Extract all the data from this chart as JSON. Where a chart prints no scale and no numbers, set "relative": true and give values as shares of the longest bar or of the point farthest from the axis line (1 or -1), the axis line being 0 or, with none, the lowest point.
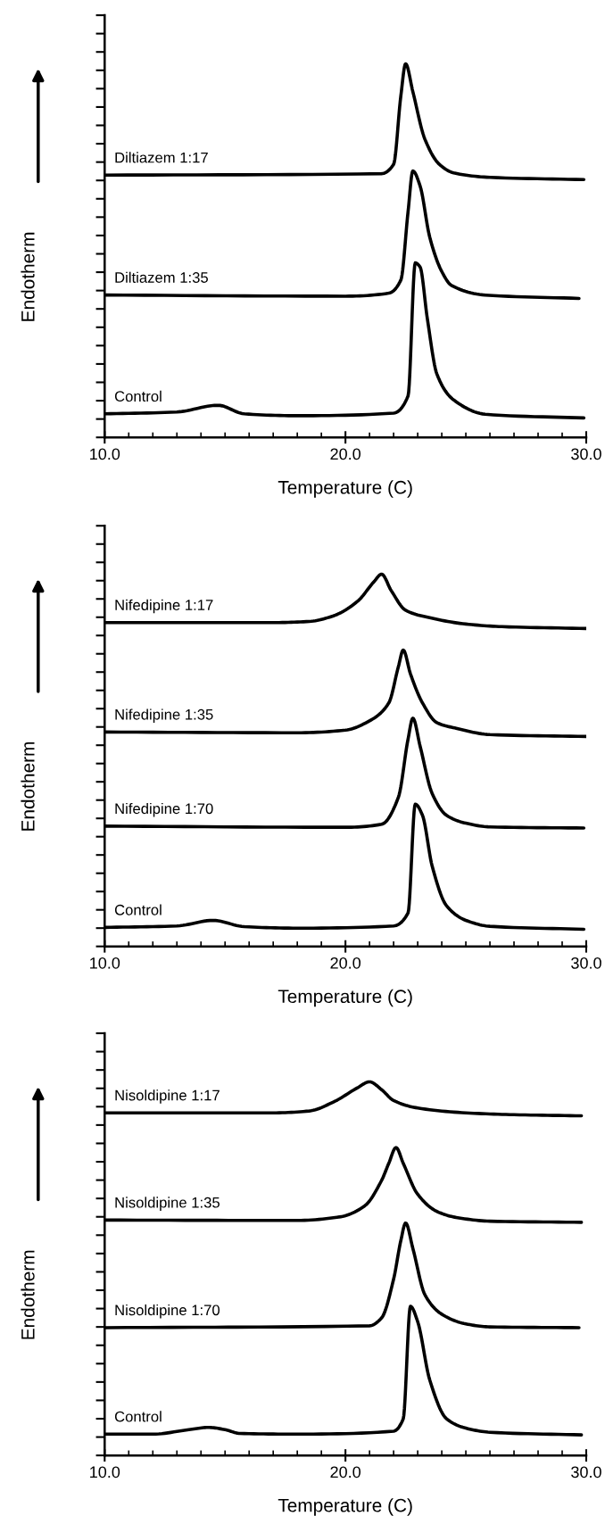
{
  "chart_data": [
    {
      "type": "line",
      "xlabel": "Temperature (C)",
      "ylabel": "Endotherm",
      "relative": true,
      "xlim": [
        10,
        30
      ],
      "xticks": [
        {
          "value": 10,
          "label": "10.0"
        },
        {
          "value": 20,
          "label": "20.0"
        },
        {
          "value": 30,
          "label": "30.0"
        }
      ],
      "tick_labels": "x",
      "grid": false,
      "legend": "left",
      "series": [
        {
          "name": "Diltiazem 1:17",
          "color": "#000000",
          "x": [
            10,
            21.5,
            22,
            22.3,
            22.5,
            22.8,
            23.3,
            23.9,
            24.5,
            26,
            29.9
          ],
          "values": [
            0.702,
            0.706,
            0.731,
            0.914,
            1.0,
            0.925,
            0.798,
            0.731,
            0.708,
            0.696,
            0.69
          ]
        },
        {
          "name": "Diltiazem 1:35",
          "color": "#000000",
          "x": [
            10,
            20,
            21.8,
            22.3,
            22.6,
            22.8,
            23.1,
            23.5,
            24,
            24.4,
            25.8,
            29.7
          ],
          "values": [
            0.381,
            0.378,
            0.386,
            0.421,
            0.604,
            0.713,
            0.673,
            0.536,
            0.444,
            0.407,
            0.381,
            0.372
          ]
        },
        {
          "name": "Control",
          "color": "#000000",
          "x": [
            10,
            13,
            14.7,
            15.8,
            18,
            22,
            22.6,
            22.9,
            23.1,
            23.4,
            23.8,
            24.5,
            25.8,
            29.9
          ],
          "values": [
            0.063,
            0.068,
            0.086,
            0.063,
            0.058,
            0.065,
            0.111,
            0.467,
            0.456,
            0.318,
            0.169,
            0.1,
            0.062,
            0.052
          ]
        }
      ]
    },
    {
      "type": "line",
      "xlabel": "Temperature (C)",
      "ylabel": "Endotherm",
      "relative": true,
      "xlim": [
        10,
        30
      ],
      "xticks": [
        {
          "value": 10,
          "label": "10.0"
        },
        {
          "value": 20,
          "label": "20.0"
        },
        {
          "value": 30,
          "label": "30.0"
        }
      ],
      "tick_labels": "x",
      "grid": false,
      "legend": "left",
      "series": [
        {
          "name": "Nifedipine 1:17",
          "color": "#000000",
          "x": [
            10,
            17,
            18.5,
            19.5,
            20.5,
            21.2,
            21.5,
            21.9,
            22.5,
            23.5,
            25,
            26.5,
            30
          ],
          "values": [
            0.87,
            0.87,
            0.873,
            0.888,
            0.927,
            0.981,
            1.0,
            0.956,
            0.903,
            0.883,
            0.866,
            0.859,
            0.854
          ]
        },
        {
          "name": "Nifedipine 1:35",
          "color": "#000000",
          "x": [
            10,
            18,
            20,
            21,
            21.8,
            22.2,
            22.4,
            22.7,
            23.2,
            23.8,
            24.6,
            26,
            30
          ],
          "values": [
            0.576,
            0.574,
            0.581,
            0.606,
            0.654,
            0.752,
            0.796,
            0.732,
            0.654,
            0.601,
            0.586,
            0.569,
            0.564
          ]
        },
        {
          "name": "Nifedipine 1:70",
          "color": "#000000",
          "x": [
            10,
            20,
            21.5,
            22.2,
            22.6,
            22.8,
            23.1,
            23.6,
            24.2,
            25,
            26,
            29.9
          ],
          "values": [
            0.323,
            0.32,
            0.328,
            0.401,
            0.557,
            0.613,
            0.538,
            0.411,
            0.352,
            0.331,
            0.321,
            0.318
          ]
        },
        {
          "name": "Control",
          "color": "#000000",
          "x": [
            10,
            13,
            14.5,
            15.8,
            18,
            22,
            22.6,
            22.9,
            23.2,
            23.6,
            24.2,
            25,
            26,
            29.9
          ],
          "values": [
            0.051,
            0.055,
            0.07,
            0.053,
            0.049,
            0.055,
            0.09,
            0.382,
            0.352,
            0.216,
            0.109,
            0.07,
            0.054,
            0.046
          ]
        }
      ]
    },
    {
      "type": "line",
      "xlabel": "Temperature (C)",
      "ylabel": "Endotherm",
      "relative": true,
      "xlim": [
        10,
        30
      ],
      "xticks": [
        {
          "value": 10,
          "label": "10.0"
        },
        {
          "value": 20,
          "label": "20.0"
        },
        {
          "value": 30,
          "label": "30.0"
        }
      ],
      "tick_labels": "x",
      "grid": false,
      "legend": "left",
      "series": [
        {
          "name": "Nisoldipine 1:17",
          "color": "#000000",
          "x": [
            10,
            17,
            18.5,
            19.5,
            20.5,
            21,
            21.5,
            22,
            23,
            25,
            27,
            29.8
          ],
          "values": [
            0.917,
            0.917,
            0.922,
            0.946,
            0.984,
            1.0,
            0.979,
            0.95,
            0.93,
            0.917,
            0.912,
            0.909
          ]
        },
        {
          "name": "Nisoldipine 1:35",
          "color": "#000000",
          "x": [
            10,
            18,
            19.8,
            20.8,
            21.5,
            21.8,
            22.1,
            22.4,
            23,
            23.8,
            24.6,
            26,
            29.8
          ],
          "values": [
            0.63,
            0.629,
            0.639,
            0.668,
            0.736,
            0.782,
            0.824,
            0.782,
            0.699,
            0.653,
            0.637,
            0.627,
            0.624
          ]
        },
        {
          "name": "Nisoldipine 1:70",
          "color": "#000000",
          "x": [
            10,
            21,
            21.5,
            22,
            22.3,
            22.5,
            22.8,
            23.3,
            24,
            25,
            26,
            29.7
          ],
          "values": [
            0.342,
            0.347,
            0.368,
            0.472,
            0.575,
            0.622,
            0.554,
            0.43,
            0.378,
            0.352,
            0.344,
            0.342
          ]
        },
        {
          "name": "Control",
          "color": "#000000",
          "x": [
            10,
            12,
            13.5,
            14.3,
            15,
            15.6,
            18,
            22,
            22.4,
            22.7,
            23,
            23.5,
            24.2,
            25,
            26,
            29.8
          ],
          "values": [
            0.057,
            0.057,
            0.069,
            0.075,
            0.069,
            0.059,
            0.057,
            0.065,
            0.098,
            0.399,
            0.358,
            0.202,
            0.098,
            0.073,
            0.062,
            0.055
          ]
        }
      ]
    }
  ]
}
